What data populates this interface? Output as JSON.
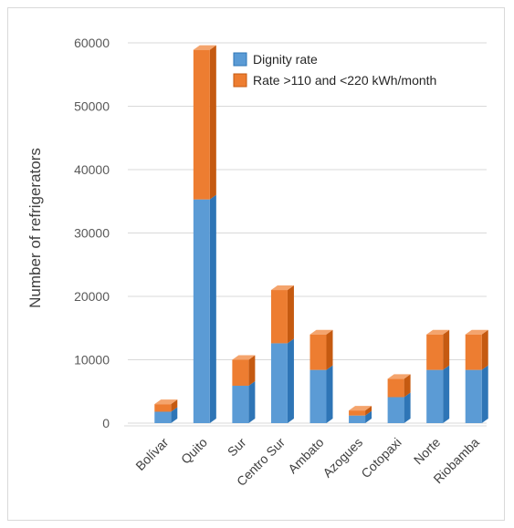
{
  "colors": {
    "dignity": "#5b9bd5",
    "dignity_side": "#2e75b6",
    "dignity_top": "#7fb2e0",
    "rate": "#ed7d31",
    "rate_side": "#c55a11",
    "rate_top": "#f4a46d",
    "grid": "#d9d9d9"
  },
  "chart_data": {
    "type": "bar",
    "stacked": true,
    "three_d": true,
    "categories": [
      "Bolívar",
      "Quito",
      "Sur",
      "Centro Sur",
      "Ambato",
      "Azogues",
      "Cotopaxi",
      "Norte",
      "Riobamba"
    ],
    "series": [
      {
        "name": "Dignity rate",
        "values": [
          1800,
          35300,
          5900,
          12600,
          8400,
          1200,
          4100,
          8400,
          8400
        ]
      },
      {
        "name": "Rate >110 and <220 kWh/month",
        "values": [
          1200,
          23600,
          4100,
          8400,
          5600,
          800,
          2900,
          5600,
          5600
        ]
      }
    ],
    "ylabel": "Number of refrigerators",
    "xlabel": "",
    "title": "",
    "ylim": [
      0,
      60000
    ],
    "yticks": [
      0,
      10000,
      20000,
      30000,
      40000,
      50000,
      60000
    ],
    "grid": true,
    "legend_position": "top-right"
  }
}
